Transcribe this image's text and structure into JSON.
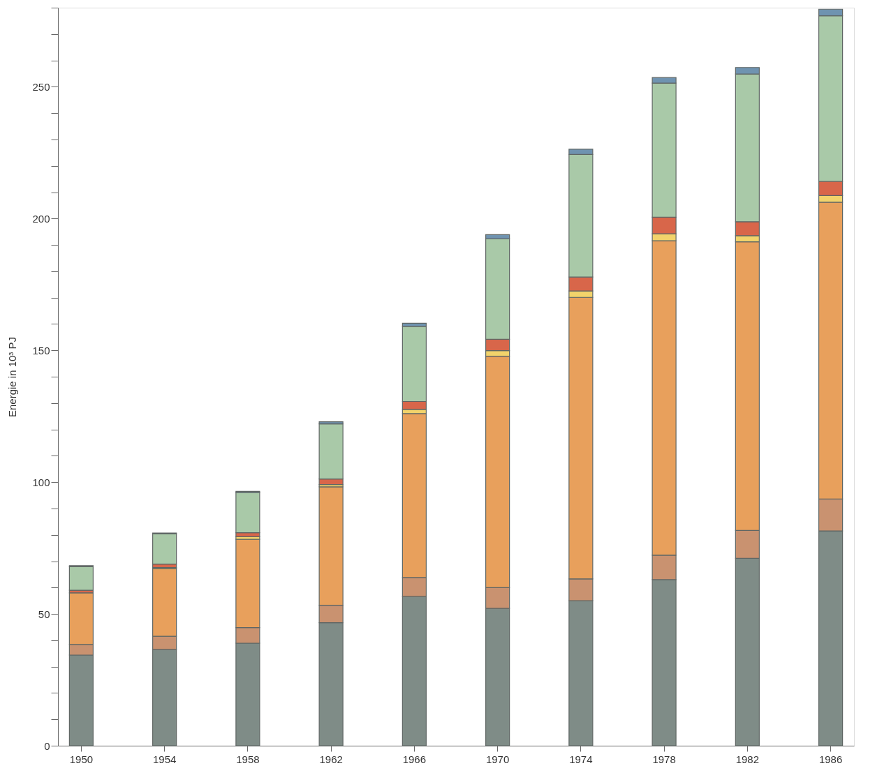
{
  "chart_data": {
    "type": "bar",
    "stacked": true,
    "ylabel": "Energie in 10³ PJ",
    "categories": [
      "1950",
      "1954",
      "1958",
      "1962",
      "1966",
      "1970",
      "1974",
      "1978",
      "1982",
      "1986"
    ],
    "series": [
      {
        "color": "#7f8c87",
        "values": [
          34.4,
          36.5,
          38.9,
          46.7,
          56.6,
          52.1,
          55.0,
          63.0,
          71.1,
          81.5
        ]
      },
      {
        "color": "#c99270",
        "values": [
          4.0,
          5.0,
          5.9,
          6.6,
          7.2,
          7.9,
          8.3,
          9.3,
          10.6,
          12.1
        ]
      },
      {
        "color": "#e8a05c",
        "values": [
          19.6,
          25.7,
          33.5,
          44.9,
          62.2,
          87.8,
          106.8,
          119.3,
          109.5,
          112.6
        ]
      },
      {
        "color": "#f2d36b",
        "values": [
          null,
          0.4,
          1.0,
          0.9,
          1.6,
          2.1,
          2.4,
          2.6,
          2.3,
          2.5
        ]
      },
      {
        "color": "#d8664a",
        "values": [
          1.0,
          1.3,
          1.5,
          2.1,
          3.0,
          4.3,
          5.3,
          6.3,
          5.3,
          5.4
        ]
      },
      {
        "color": "#a9c9a8",
        "values": [
          9.0,
          11.5,
          15.3,
          20.9,
          28.5,
          38.1,
          46.5,
          50.9,
          56.0,
          62.8
        ]
      },
      {
        "color": "#6f93b0",
        "values": [
          0.3,
          0.3,
          0.4,
          0.8,
          1.2,
          1.6,
          2.0,
          2.1,
          2.5,
          2.5
        ]
      }
    ],
    "ylim": [
      0,
      280
    ],
    "yticks": [
      0,
      {
        "value": 10,
        "label": null
      },
      {
        "value": 20,
        "label": null
      },
      {
        "value": 30,
        "label": null
      },
      {
        "value": 40,
        "label": null
      },
      50,
      {
        "value": 60,
        "label": null
      },
      {
        "value": 70,
        "label": null
      },
      {
        "value": 80,
        "label": null
      },
      {
        "value": 90,
        "label": null
      },
      100,
      {
        "value": 110,
        "label": null
      },
      {
        "value": 120,
        "label": null
      },
      {
        "value": 130,
        "label": null
      },
      {
        "value": 140,
        "label": null
      },
      150,
      {
        "value": 160,
        "label": null
      },
      {
        "value": 170,
        "label": null
      },
      {
        "value": 180,
        "label": null
      },
      {
        "value": 190,
        "label": null
      },
      200,
      {
        "value": 210,
        "label": null
      },
      {
        "value": 220,
        "label": null
      },
      {
        "value": 230,
        "label": null
      },
      {
        "value": 240,
        "label": null
      },
      250,
      {
        "value": 260,
        "label": null
      },
      {
        "value": 270,
        "label": null
      },
      {
        "value": 280,
        "label": null
      }
    ],
    "grid": false,
    "legend": false
  }
}
